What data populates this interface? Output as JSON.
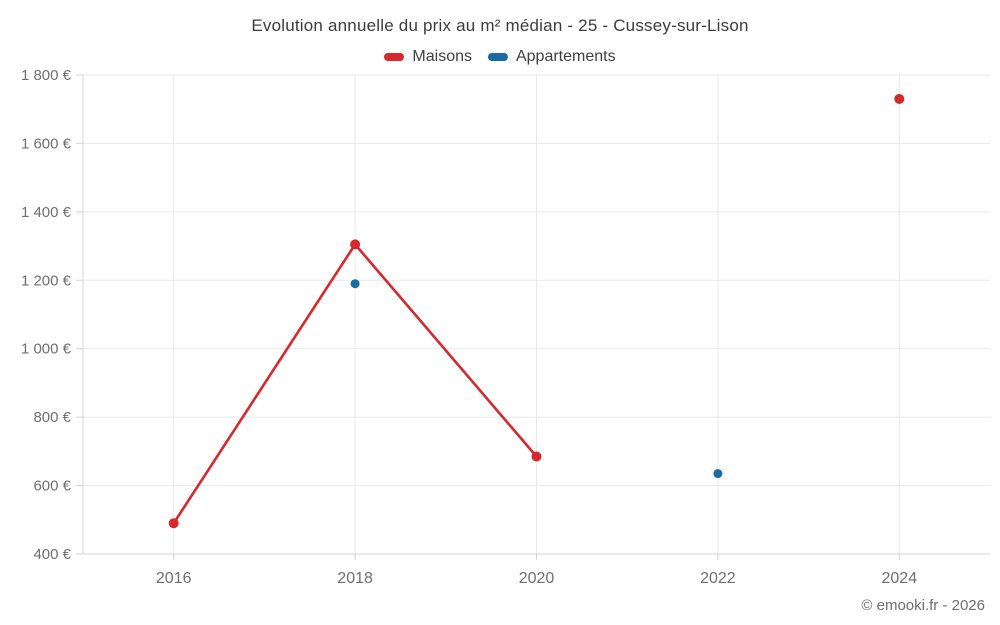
{
  "title": "Evolution annuelle du prix au m² médian - 25 - Cussey-sur-Lison",
  "copyright": "© emooki.fr - 2026",
  "colors": {
    "maisons": "#d6282d",
    "appartements": "#1a6ca5",
    "grid": "#e9e9e9",
    "axis": "#d6d6d6",
    "tick_label": "#6f6f6f",
    "title": "#3c3c3c",
    "legend_text": "#3f3f3f",
    "copyright": "#6e6e6e",
    "background": "#ffffff"
  },
  "chart_data": {
    "type": "line",
    "title": "Evolution annuelle du prix au m² médian - 25 - Cussey-sur-Lison",
    "categories": [
      2016,
      2018,
      2020,
      2022,
      2024
    ],
    "x_tick_labels": [
      "2016",
      "2018",
      "2020",
      "2022",
      "2024"
    ],
    "series": [
      {
        "name": "Maisons",
        "color": "#d6282d",
        "values": [
          490,
          1305,
          685,
          null,
          1730
        ]
      },
      {
        "name": "Appartements",
        "color": "#1a6ca5",
        "values": [
          null,
          1190,
          null,
          635,
          null
        ]
      }
    ],
    "unit": "€",
    "ylim": [
      400,
      1800
    ],
    "y_tick_step": 200,
    "y_tick_labels": [
      "400 €",
      "600 €",
      "800 €",
      "1 000 €",
      "1 200 €",
      "1 400 €",
      "1 600 €",
      "1 800 €"
    ],
    "xlim": [
      2015,
      2025
    ],
    "grid": true,
    "legend_position": "top"
  }
}
